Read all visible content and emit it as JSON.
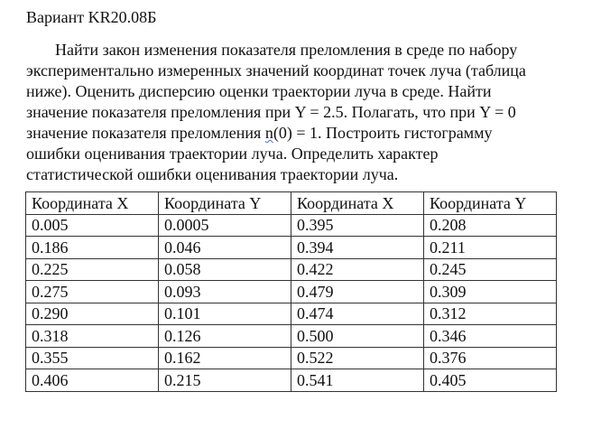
{
  "title": "Вариант KR20.08Б",
  "paragraph": {
    "lines": [
      "Найти закон изменения показателя преломления в среде по набору",
      "экспериментально измеренных значений координат точек луча (таблица",
      "ниже). Оценить дисперсию оценки траектории луча в среде. Найти",
      "значение показателя преломления при Y = 2.5. Полагать, что при Y = 0"
    ],
    "line5": {
      "before": "значение показателя преломления ",
      "flagged": "n",
      "after": "(0) = 1. Построить гистограмму"
    },
    "lines_end": [
      "ошибки оценивания траектории луча. Определить характер",
      "статистической ошибки оценивания траектории луча."
    ],
    "spellcheck_color": "#3b6fd6"
  },
  "table": {
    "headers": [
      "Координата X",
      "Координата Y",
      "Координата X",
      "Координата Y"
    ],
    "rows": [
      [
        "0.005",
        "0.0005",
        "0.395",
        "0.208"
      ],
      [
        "0.186",
        "0.046",
        "0.394",
        "0.211"
      ],
      [
        "0.225",
        "0.058",
        "0.422",
        "0.245"
      ],
      [
        "0.275",
        "0.093",
        "0.479",
        "0.309"
      ],
      [
        "0.290",
        "0.101",
        "0.474",
        "0.312"
      ],
      [
        "0.318",
        "0.126",
        "0.500",
        "0.346"
      ],
      [
        "0.355",
        "0.162",
        "0.522",
        "0.376"
      ],
      [
        "0.406",
        "0.215",
        "0.541",
        "0.405"
      ]
    ]
  }
}
